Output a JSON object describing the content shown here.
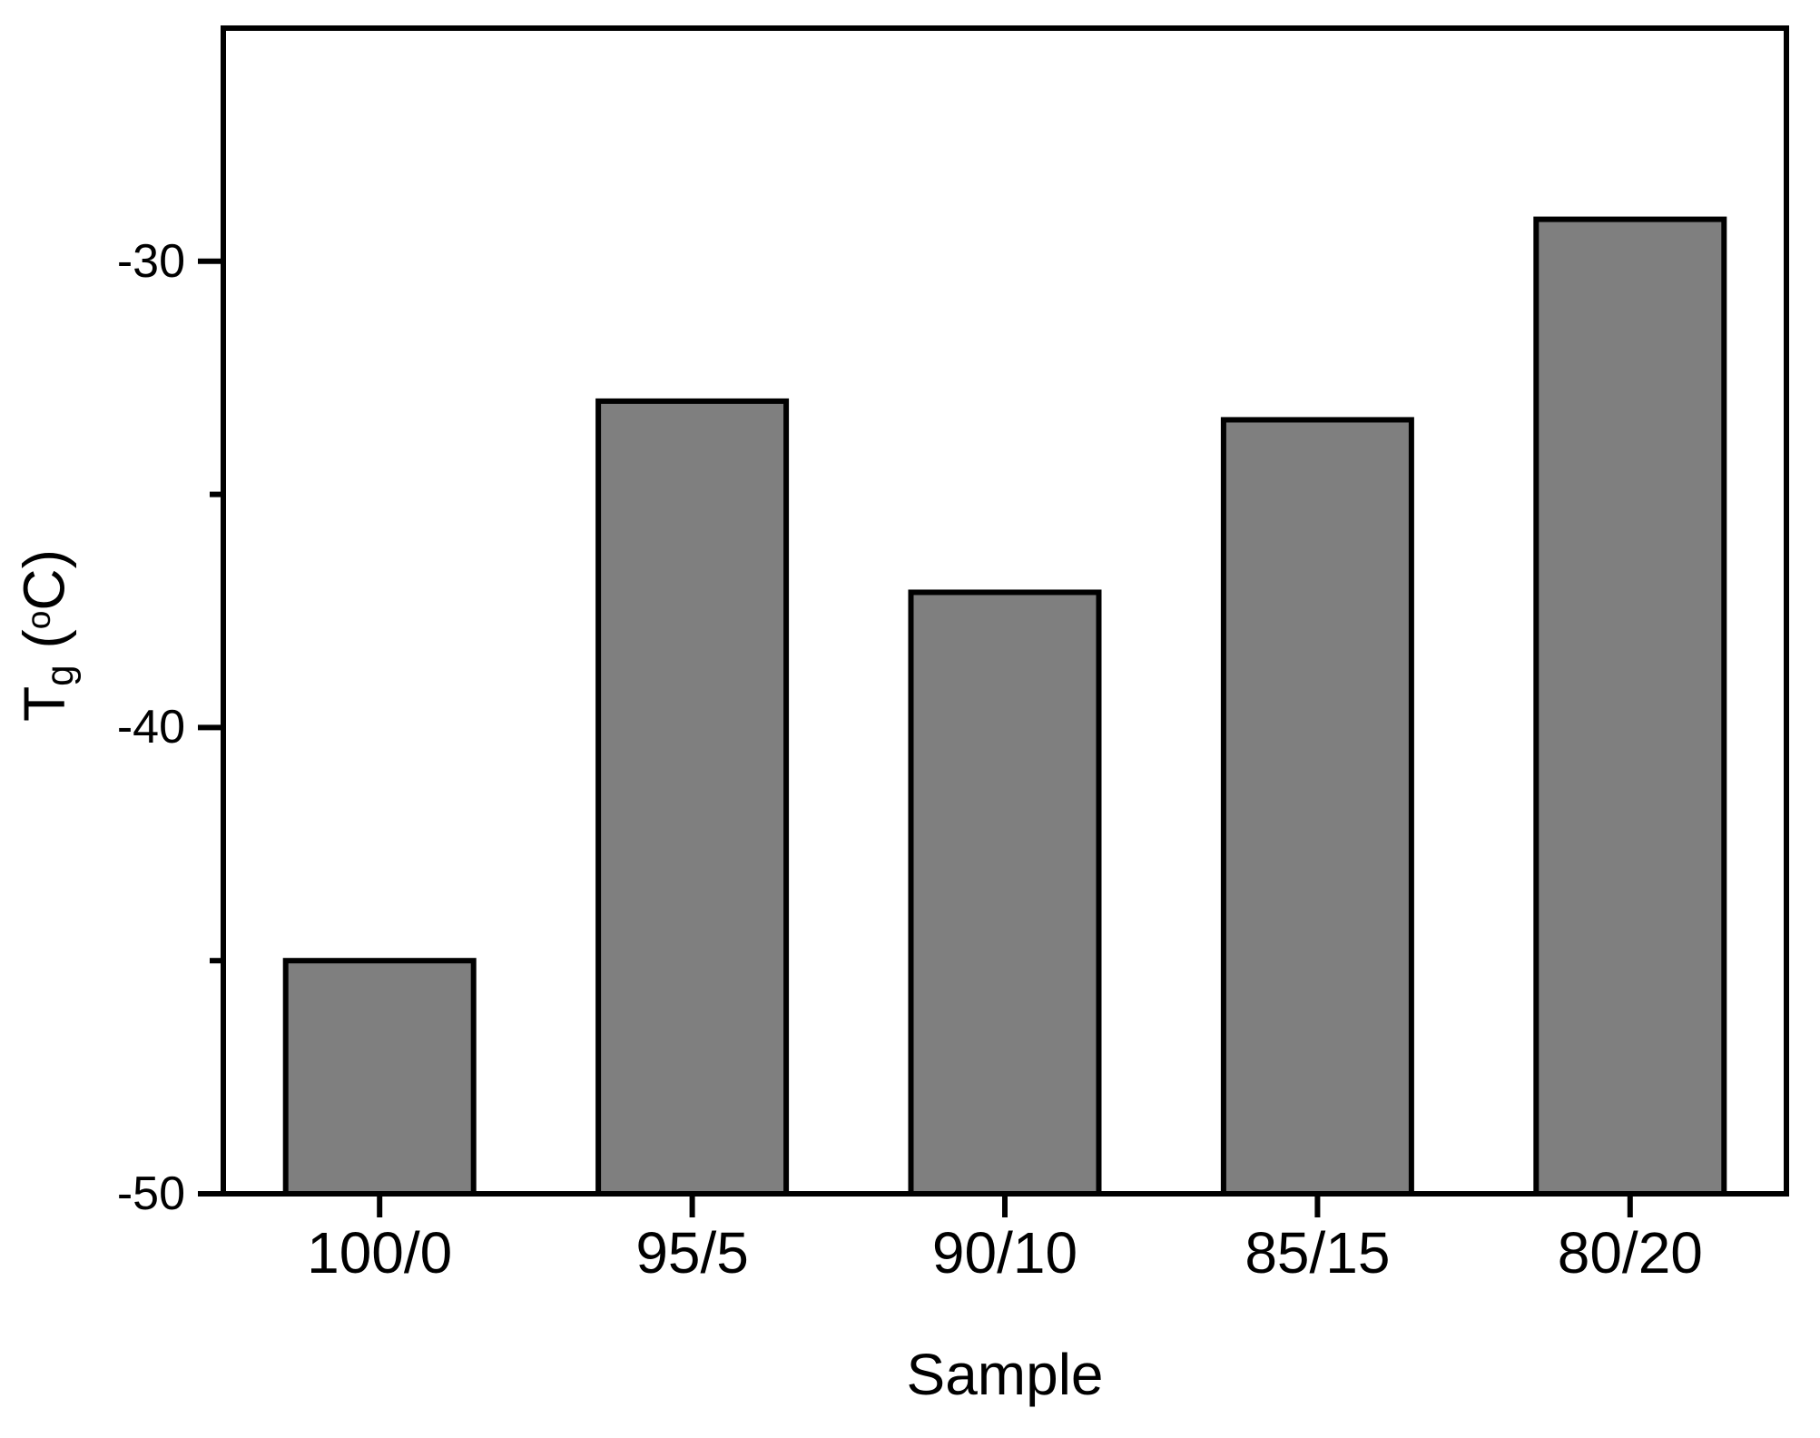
{
  "chart_data": {
    "type": "bar",
    "title": "",
    "categories": [
      "100/0",
      "95/5",
      "90/10",
      "85/15",
      "80/20"
    ],
    "values": [
      -45.0,
      -33.0,
      -37.1,
      -33.4,
      -29.1
    ],
    "xlabel": "Sample",
    "ylabel": "Tg (oC)",
    "ylabel_parts": {
      "base": "T",
      "sub": "g",
      "open": " (",
      "degree": "o",
      "close": "C)"
    },
    "ylim": [
      -50,
      -25
    ],
    "ytick_major_values": [
      -30,
      -40,
      -50
    ],
    "ytick_major_labels": [
      "-30",
      "-40",
      "-50"
    ],
    "ytick_minor_values": [
      -35,
      -45
    ],
    "xtick_labels": [
      "100/0",
      "95/5",
      "90/10",
      "85/15",
      "80/20"
    ],
    "grid": false,
    "legend": null,
    "bar_fill_color": "#7f7f7f",
    "bar_edge_color": "#000000",
    "axis_line_color": "#000000",
    "background_color": "#ffffff"
  }
}
